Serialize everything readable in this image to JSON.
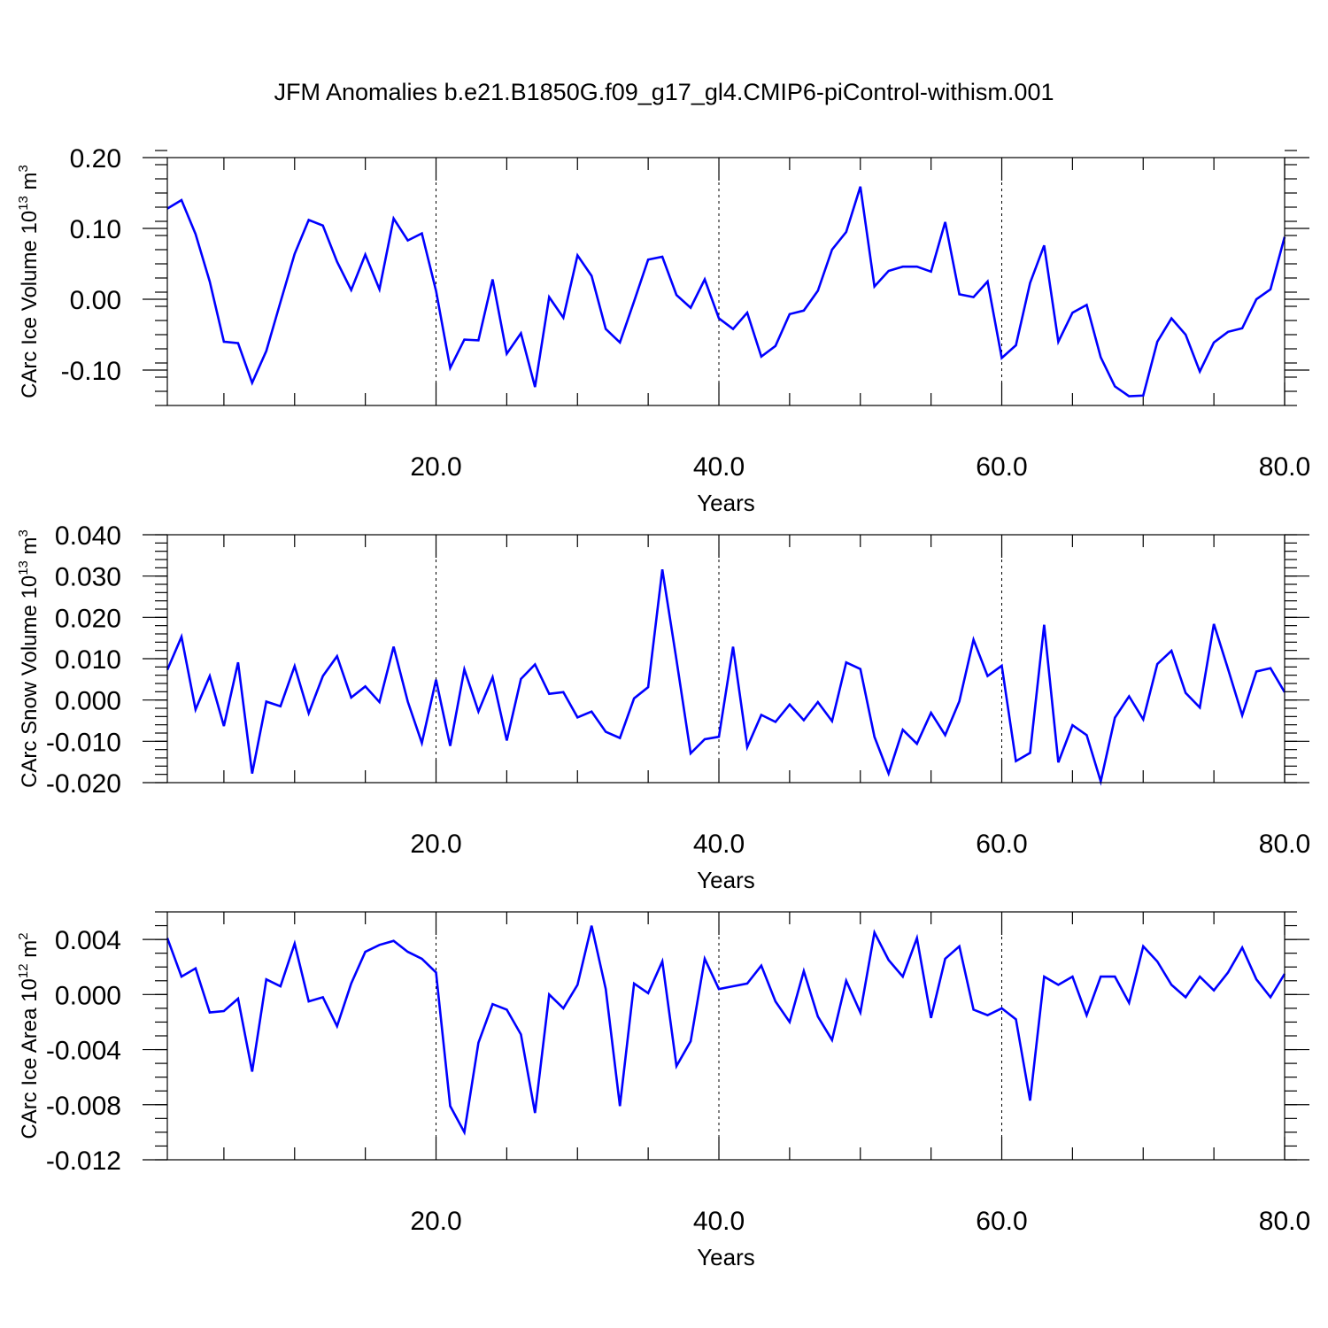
{
  "chart_data": [
    {
      "type": "line",
      "title": "JFM Anomalies b.e21.B1850G.f09_g17_gl4.CMIP6-piControl-withism.001",
      "xlabel": "Years",
      "ylabel": {
        "main": "CArc Ice Volume 10",
        "sup": "13",
        "unit": " m",
        "unit_sup": "3"
      },
      "xlim": [
        1,
        80
      ],
      "ylim": [
        -0.15,
        0.2
      ],
      "xticks": [
        20,
        40,
        60,
        80
      ],
      "xtick_labels": [
        "20.0",
        "40.0",
        "60.0",
        "80.0"
      ],
      "yticks": [
        -0.1,
        0.0,
        0.1,
        0.2
      ],
      "ytick_labels": [
        "-0.10",
        "0.00",
        "0.10",
        "0.20"
      ],
      "y_minor_step": 0.02,
      "grid_x": true,
      "color": "#0000ff",
      "x_start": 1,
      "values": [
        0.128,
        0.14,
        0.092,
        0.025,
        -0.06,
        -0.062,
        -0.118,
        -0.073,
        -0.004,
        0.064,
        0.112,
        0.104,
        0.053,
        0.013,
        0.063,
        0.014,
        0.114,
        0.083,
        0.093,
        0.012,
        -0.097,
        -0.057,
        -0.058,
        0.028,
        -0.077,
        -0.048,
        -0.124,
        0.003,
        -0.026,
        0.062,
        0.033,
        -0.042,
        -0.061,
        -0.003,
        0.056,
        0.06,
        0.006,
        -0.012,
        0.028,
        -0.027,
        -0.042,
        -0.019,
        -0.081,
        -0.066,
        -0.021,
        -0.016,
        0.012,
        0.07,
        0.095,
        0.159,
        0.018,
        0.04,
        0.046,
        0.046,
        0.039,
        0.109,
        0.007,
        0.003,
        0.025,
        -0.083,
        -0.065,
        0.023,
        0.076,
        -0.06,
        -0.019,
        -0.008,
        -0.082,
        -0.123,
        -0.137,
        -0.136,
        -0.06,
        -0.027,
        -0.05,
        -0.102,
        -0.061,
        -0.046,
        -0.041,
        0.0,
        0.014,
        0.088
      ]
    },
    {
      "type": "line",
      "xlabel": "Years",
      "ylabel": {
        "main": "CArc Snow Volume 10",
        "sup": "13",
        "unit": " m",
        "unit_sup": "3"
      },
      "xlim": [
        1,
        80
      ],
      "ylim": [
        -0.02,
        0.04
      ],
      "xticks": [
        20,
        40,
        60,
        80
      ],
      "xtick_labels": [
        "20.0",
        "40.0",
        "60.0",
        "80.0"
      ],
      "yticks": [
        -0.02,
        -0.01,
        0.0,
        0.01,
        0.02,
        0.03,
        0.04
      ],
      "ytick_labels": [
        "-0.020",
        "-0.010",
        "0.000",
        "0.010",
        "0.020",
        "0.030",
        "0.040"
      ],
      "y_minor_step": 0.002,
      "grid_x": true,
      "color": "#0000ff",
      "x_start": 1,
      "values": [
        0.0073,
        0.0153,
        -0.0023,
        0.0058,
        -0.0063,
        0.0091,
        -0.0178,
        -0.0004,
        -0.0015,
        0.0082,
        -0.0032,
        0.0058,
        0.0106,
        0.0006,
        0.0033,
        -0.0005,
        0.0129,
        -0.0004,
        -0.0104,
        0.0049,
        -0.0111,
        0.0074,
        -0.0028,
        0.0055,
        -0.0098,
        0.0051,
        0.0086,
        0.0015,
        0.0019,
        -0.0042,
        -0.0028,
        -0.0077,
        -0.0092,
        0.0004,
        0.0031,
        0.0316,
        0.0097,
        -0.0129,
        -0.0095,
        -0.0089,
        0.0129,
        -0.0114,
        -0.0036,
        -0.0053,
        -0.0011,
        -0.0049,
        -0.0005,
        -0.0051,
        0.0091,
        0.0075,
        -0.0089,
        -0.0178,
        -0.0072,
        -0.0106,
        -0.0031,
        -0.0085,
        -0.0003,
        0.0146,
        0.0058,
        0.0083,
        -0.0148,
        -0.0128,
        0.0182,
        -0.0151,
        -0.0061,
        -0.0085,
        -0.0197,
        -0.0043,
        0.0009,
        -0.0047,
        0.0087,
        0.0119,
        0.0017,
        -0.0018,
        0.0184,
        0.0075,
        -0.0037,
        0.0069,
        0.0077,
        0.0019
      ]
    },
    {
      "type": "line",
      "xlabel": "Years",
      "ylabel": {
        "main": "CArc Ice Area 10",
        "sup": "12",
        "unit": " m",
        "unit_sup": "2"
      },
      "xlim": [
        1,
        80
      ],
      "ylim": [
        -0.012,
        0.006
      ],
      "xticks": [
        20,
        40,
        60,
        80
      ],
      "xtick_labels": [
        "20.0",
        "40.0",
        "60.0",
        "80.0"
      ],
      "yticks": [
        -0.012,
        -0.008,
        -0.004,
        0.0,
        0.004
      ],
      "ytick_labels": [
        "-0.012",
        "-0.008",
        "-0.004",
        "0.000",
        "0.004"
      ],
      "y_minor_step": 0.001,
      "grid_x": true,
      "color": "#0000ff",
      "x_start": 1,
      "values": [
        0.0041,
        0.0013,
        0.0019,
        -0.0013,
        -0.0012,
        -0.0003,
        -0.0056,
        0.0011,
        0.0006,
        0.0037,
        -0.0005,
        -0.0002,
        -0.0023,
        0.0008,
        0.0031,
        0.0036,
        0.0039,
        0.0031,
        0.0026,
        0.0016,
        -0.0081,
        -0.01,
        -0.0035,
        -0.0007,
        -0.0011,
        -0.0029,
        -0.0086,
        0.0,
        -0.001,
        0.0007,
        0.005,
        0.0004,
        -0.0081,
        0.0008,
        0.0001,
        0.0024,
        -0.0052,
        -0.0034,
        0.0026,
        0.0004,
        0.0006,
        0.0008,
        0.0021,
        -0.0005,
        -0.002,
        0.0017,
        -0.0016,
        -0.0033,
        0.001,
        -0.0013,
        0.0045,
        0.0025,
        0.0013,
        0.0041,
        -0.0017,
        0.0026,
        0.0035,
        -0.0011,
        -0.0015,
        -0.001,
        -0.0018,
        -0.0077,
        0.0013,
        0.0007,
        0.0013,
        -0.0015,
        0.0013,
        0.0013,
        -0.0006,
        0.0035,
        0.0024,
        0.0007,
        -0.0002,
        0.0013,
        0.0003,
        0.0016,
        0.0034,
        0.0011,
        -0.0002,
        0.0015
      ]
    }
  ]
}
